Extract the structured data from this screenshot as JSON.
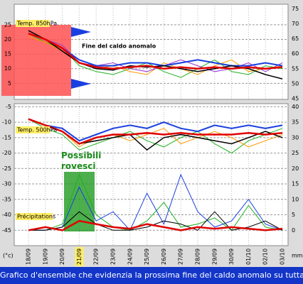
{
  "chart_data": [
    {
      "type": "line",
      "title": "Temp. 850hPa",
      "annotation": "Fine del caldo anomalo",
      "ylim": [
        -0.5,
        32
      ],
      "yticks": [
        5,
        10,
        15,
        20,
        25
      ],
      "y2lim": [
        44.8,
        76.5
      ],
      "y2ticks": [
        45,
        50,
        55,
        60,
        65,
        70,
        75
      ],
      "grid": true,
      "series": [
        {
          "color": "#20b020",
          "width": 1,
          "values": [
            22,
            19,
            17,
            11,
            9,
            8,
            10,
            12,
            9,
            7,
            10,
            13,
            9,
            8,
            11,
            10
          ]
        },
        {
          "color": "#ff9900",
          "width": 1,
          "values": [
            21,
            19,
            16,
            12,
            10,
            11,
            9,
            8,
            12,
            10,
            8,
            11,
            13,
            9,
            10,
            11
          ]
        },
        {
          "color": "#9933cc",
          "width": 1,
          "values": [
            22,
            20,
            18,
            12,
            11,
            12,
            10,
            9,
            11,
            13,
            11,
            9,
            10,
            12,
            9,
            12
          ]
        },
        {
          "color": "#1a3fe0",
          "width": 2,
          "values": [
            22,
            20,
            17,
            13,
            11,
            11,
            12,
            12,
            11,
            12,
            13,
            12,
            11,
            11,
            12,
            11
          ]
        },
        {
          "color": "#000000",
          "width": 1.5,
          "values": [
            23,
            20,
            16,
            12,
            10,
            9.5,
            11,
            10.5,
            11,
            10,
            9,
            10,
            11,
            10,
            8,
            6.5
          ]
        },
        {
          "color": "#e00000",
          "width": 2.5,
          "values": [
            22,
            20,
            17,
            12,
            10.5,
            10,
            10.5,
            11,
            10,
            10.5,
            10,
            10.5,
            10,
            10.5,
            10,
            10.5
          ]
        }
      ]
    },
    {
      "type": "line",
      "title": "Temp. 500hPa",
      "y2label": "Précipitations",
      "annotation": "Possibili rovesci",
      "categories": [
        "18/09",
        "19/09",
        "20/09",
        "21/09",
        "22/09",
        "23/09",
        "24/09",
        "25/09",
        "26/09",
        "27/09",
        "28/09",
        "29/09",
        "30/09",
        "01/10",
        "02/10",
        "03/10"
      ],
      "highlighted_category": "21/09",
      "ylim": [
        -50,
        -4
      ],
      "yticks": [
        -45,
        -40,
        -35,
        -30,
        -25,
        -20,
        -15,
        -10,
        -5
      ],
      "y2lim": [
        -5,
        41
      ],
      "y2ticks": [
        0,
        5,
        10,
        15,
        20,
        25,
        30,
        35,
        40
      ],
      "grid": true,
      "series": [
        {
          "color": "#20b020",
          "width": 1,
          "values": [
            -9,
            -12,
            -14,
            -19,
            -17,
            -15,
            -13,
            -16,
            -18,
            -15,
            -13,
            -17,
            -20,
            -16,
            -14,
            -12
          ]
        },
        {
          "color": "#ff9900",
          "width": 1,
          "values": [
            -9,
            -11,
            -13,
            -18,
            -15,
            -14,
            -16,
            -14,
            -12,
            -17,
            -15,
            -13,
            -15,
            -18,
            -16,
            -14
          ]
        },
        {
          "color": "#1a3fe0",
          "width": 2,
          "values": [
            -9,
            -11,
            -12,
            -16,
            -14,
            -12,
            -11,
            -12,
            -10,
            -12,
            -13,
            -11,
            -12,
            -11,
            -12,
            -11
          ]
        },
        {
          "color": "#000000",
          "width": 1.5,
          "values": [
            -9,
            -11,
            -13,
            -17,
            -16,
            -15,
            -14,
            -19,
            -15,
            -14,
            -15,
            -16,
            -17,
            -15,
            -13,
            -15
          ]
        },
        {
          "color": "#e00000",
          "width": 2.5,
          "values": [
            -9,
            -11,
            -13,
            -17,
            -15,
            -14,
            -14,
            -13.5,
            -14,
            -13.5,
            -14,
            -14,
            -14,
            -13.5,
            -14,
            -13.5
          ]
        },
        {
          "color": "#20b020",
          "width": 1,
          "axis": "y2",
          "values": [
            0,
            0,
            2,
            18,
            5,
            1,
            0,
            3,
            9,
            1,
            2,
            4,
            0,
            8,
            1,
            0
          ]
        },
        {
          "color": "#1a3fe0",
          "width": 1,
          "axis": "y2",
          "values": [
            0,
            0,
            1,
            14,
            3,
            6,
            0,
            12,
            2,
            18,
            6,
            1,
            3,
            10,
            2,
            0
          ]
        },
        {
          "color": "#000000",
          "width": 1,
          "axis": "y2",
          "values": [
            0,
            0,
            1,
            6,
            2,
            0,
            0,
            1,
            3,
            2,
            0,
            6,
            0,
            1,
            3,
            0
          ]
        },
        {
          "color": "#e00000",
          "width": 2.5,
          "axis": "y2",
          "values": [
            0,
            1,
            0,
            3,
            2,
            1,
            0.5,
            2,
            1,
            0,
            1,
            0.5,
            1,
            0.5,
            0,
            0.5
          ]
        }
      ]
    }
  ],
  "units": {
    "left": "(°c)",
    "right": "mm"
  },
  "caption": "Grafico d'ensemble che evidenzia la prossima fine del caldo anomalo su tutta l'Italia"
}
